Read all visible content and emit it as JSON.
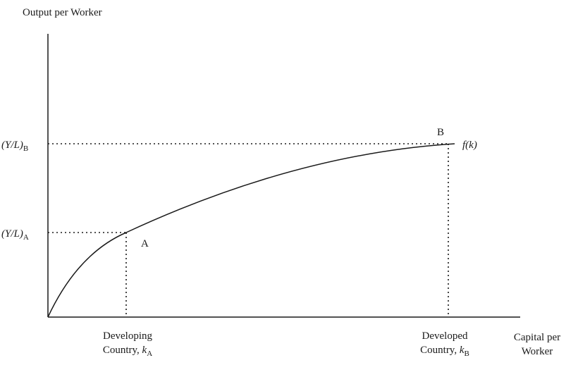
{
  "diagram": {
    "y_axis_title": "Output per Worker",
    "x_axis_title_line1": "Capital per",
    "x_axis_title_line2": "Worker",
    "y_tick_A": {
      "base": "(Y/L)",
      "sub": "A"
    },
    "y_tick_B": {
      "base": "(Y/L)",
      "sub": "B"
    },
    "x_tick_A": {
      "line1": "Developing",
      "line2_text": "Country, ",
      "var": "k",
      "sub": "A"
    },
    "x_tick_B": {
      "line1": "Developed",
      "line2_text": "Country, ",
      "var": "k",
      "sub": "B"
    },
    "point_A_label": "A",
    "point_B_label": "B",
    "curve_label": "f(k)"
  }
}
